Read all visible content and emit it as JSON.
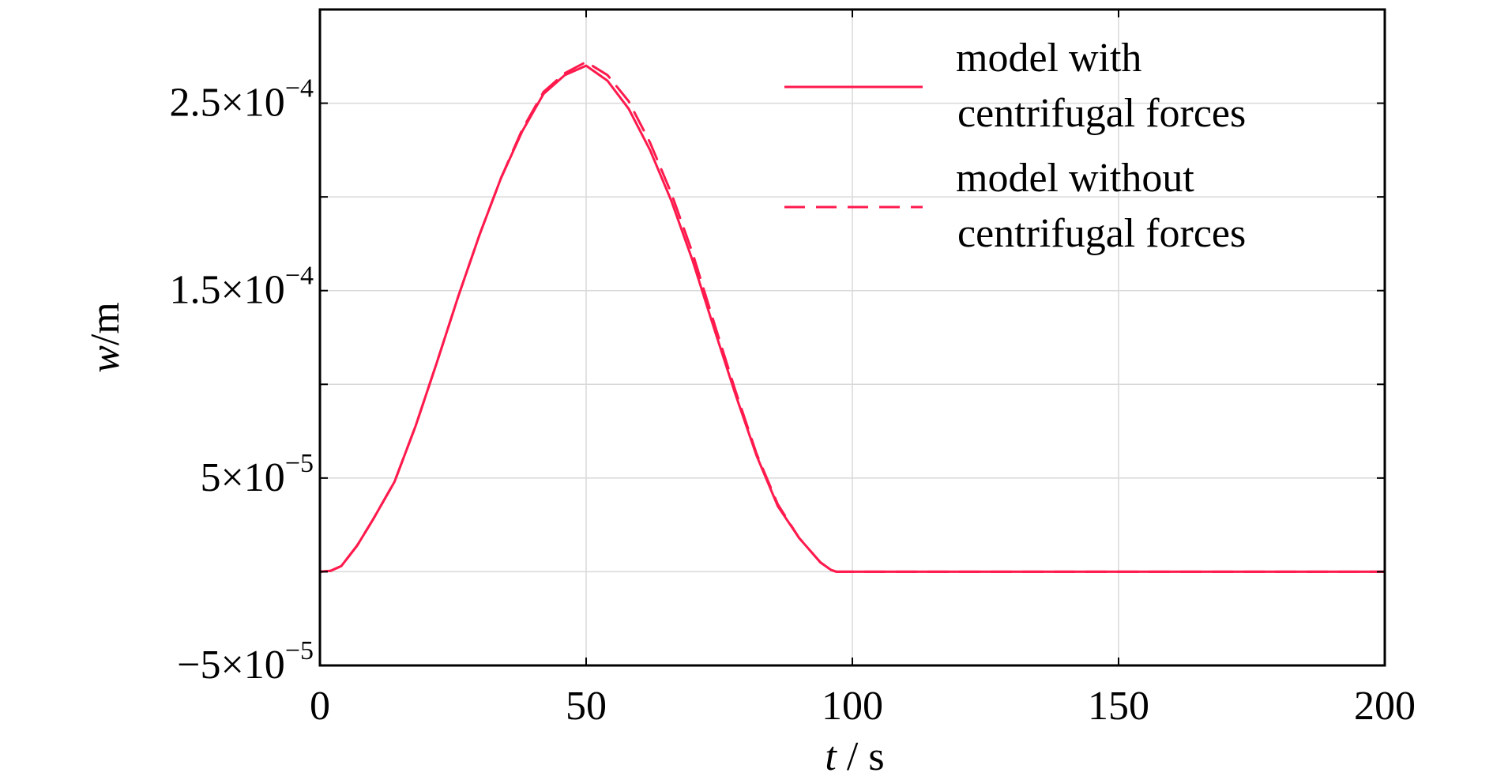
{
  "chart_data": {
    "type": "line",
    "xlabel_italic": "t",
    "xlabel_unit": " / s",
    "ylabel_italic": "w",
    "ylabel_unit": "/m",
    "xlim": [
      0,
      200
    ],
    "ylim": [
      -5e-05,
      0.0003
    ],
    "grid": true,
    "legend_position": "top-right",
    "x_ticks": [
      0,
      50,
      100,
      150,
      200
    ],
    "x_tick_labels": [
      "0",
      "50",
      "100",
      "150",
      "200"
    ],
    "y_ticks": [
      -5e-05,
      5e-05,
      0.00015,
      0.00025
    ],
    "y_tick_labels": [
      {
        "mantissa": "−5×10",
        "exponent": "−5"
      },
      {
        "mantissa": "5×10",
        "exponent": "−5"
      },
      {
        "mantissa": "1.5×10",
        "exponent": "−4"
      },
      {
        "mantissa": "2.5×10",
        "exponent": "−4"
      }
    ],
    "y_minor_ticks": [
      0,
      0.0001,
      0.0002,
      0.0003
    ],
    "series": [
      {
        "name_line1": "model with",
        "name_line2": "centrifugal forces",
        "color": "#ff1a4d",
        "dash": "solid",
        "x": [
          0,
          2,
          4,
          7,
          10,
          14,
          18,
          22,
          26,
          30,
          34,
          38,
          42,
          46,
          50,
          54,
          58,
          62,
          66,
          70,
          74,
          78,
          82,
          86,
          90,
          94,
          96,
          97,
          100,
          150,
          200
        ],
        "y": [
          0,
          5e-07,
          3e-06,
          1.4e-05,
          2.8e-05,
          4.8e-05,
          7.8e-05,
          0.000112,
          0.000147,
          0.00018,
          0.00021,
          0.000235,
          0.000255,
          0.000265,
          0.00027,
          0.000262,
          0.000247,
          0.000225,
          0.000198,
          0.000166,
          0.00013,
          9.5e-05,
          6.2e-05,
          3.5e-05,
          1.8e-05,
          5e-06,
          1e-06,
          0,
          0,
          0,
          0
        ]
      },
      {
        "name_line1": "model without",
        "name_line2": "centrifugal forces",
        "color": "#ff1a4d",
        "dash": "dashed",
        "x": [
          0,
          2,
          4,
          7,
          10,
          14,
          18,
          22,
          26,
          30,
          34,
          38,
          42,
          46,
          50,
          54,
          58,
          62,
          66,
          70,
          74,
          78,
          82,
          86,
          90,
          94,
          96,
          97,
          100,
          150,
          200
        ],
        "y": [
          0,
          5e-07,
          3e-06,
          1.4e-05,
          2.8e-05,
          4.8e-05,
          7.8e-05,
          0.000112,
          0.000147,
          0.00018,
          0.00021,
          0.000236,
          0.000256,
          0.000266,
          0.000272,
          0.000265,
          0.000251,
          0.000229,
          0.000202,
          0.00017,
          0.000133,
          9.7e-05,
          6.3e-05,
          3.6e-05,
          1.8e-05,
          5e-06,
          1e-06,
          0,
          0,
          0,
          0
        ]
      }
    ]
  }
}
